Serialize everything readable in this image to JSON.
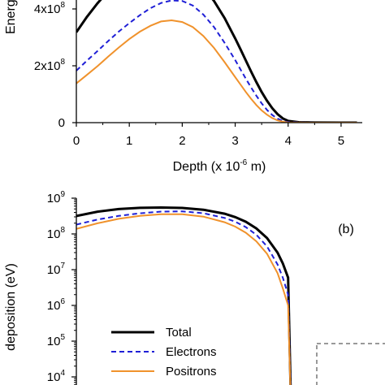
{
  "chart_data": [
    {
      "type": "line",
      "xlabel_main": "Depth (x 10",
      "xlabel_exp": "-6",
      "xlabel_tail": " m)",
      "ylabel": "Energy d",
      "x_ticks": [
        "0",
        "1",
        "2",
        "3",
        "4",
        "5"
      ],
      "y_ticks": [
        {
          "value": 0,
          "mant": "0",
          "exp": ""
        },
        {
          "value": 200000000,
          "mant": "2x10",
          "exp": "8"
        },
        {
          "value": 400000000,
          "mant": "4x10",
          "exp": "8"
        }
      ],
      "xlim": [
        0,
        5.4
      ],
      "ylim": [
        0,
        480000000
      ],
      "series": [
        {
          "name": "Total",
          "color": "#000000",
          "dash": "solid",
          "x": [
            0,
            0.2,
            0.4,
            0.6,
            0.8,
            1.0,
            1.2,
            1.4,
            1.6,
            1.8,
            2.0,
            2.2,
            2.4,
            2.6,
            2.8,
            3.0,
            3.1,
            3.2,
            3.3,
            3.4,
            3.5,
            3.6,
            3.7,
            3.8,
            3.9,
            4.0,
            4.2,
            4.5,
            5.0,
            5.3
          ],
          "y": [
            318000000,
            372000000,
            420000000,
            462000000,
            495000000,
            520000000,
            536000000,
            545000000,
            548000000,
            545000000,
            533000000,
            510000000,
            475000000,
            428000000,
            368000000,
            296000000,
            258000000,
            219000000,
            180000000,
            143000000,
            108000000,
            77000000,
            51000000,
            30000000,
            15000000,
            6000000,
            1500000,
            300000,
            0,
            0
          ]
        },
        {
          "name": "Electrons",
          "color": "#1f1fd6",
          "dash": "dashed",
          "x": [
            0,
            0.2,
            0.4,
            0.6,
            0.8,
            1.0,
            1.2,
            1.4,
            1.6,
            1.8,
            2.0,
            2.2,
            2.4,
            2.6,
            2.8,
            3.0,
            3.1,
            3.2,
            3.3,
            3.4,
            3.5,
            3.6,
            3.7,
            3.8,
            3.9,
            4.0,
            4.2,
            4.5,
            5.0,
            5.3
          ],
          "y": [
            183000000,
            218000000,
            252000000,
            287000000,
            320000000,
            350000000,
            378000000,
            403000000,
            421000000,
            430000000,
            428000000,
            412000000,
            380000000,
            336000000,
            281000000,
            220000000,
            187000000,
            155000000,
            124000000,
            95000000,
            68000000,
            45000000,
            27000000,
            14000000,
            6000000,
            2000000,
            500000,
            0,
            0,
            0
          ]
        },
        {
          "name": "Positrons",
          "color": "#f0922c",
          "dash": "solid",
          "x": [
            0,
            0.2,
            0.4,
            0.6,
            0.8,
            1.0,
            1.2,
            1.4,
            1.6,
            1.8,
            2.0,
            2.2,
            2.4,
            2.6,
            2.8,
            3.0,
            3.1,
            3.2,
            3.3,
            3.4,
            3.5,
            3.6,
            3.7,
            3.8,
            3.9,
            4.0,
            4.2,
            4.5,
            5.0,
            5.3
          ],
          "y": [
            138000000,
            168000000,
            199000000,
            232000000,
            264000000,
            294000000,
            320000000,
            341000000,
            356000000,
            360000000,
            354000000,
            336000000,
            305000000,
            263000000,
            213000000,
            160000000,
            134000000,
            108000000,
            84000000,
            62000000,
            43000000,
            28000000,
            16000000,
            8000000,
            3000000,
            1000000,
            200000,
            0,
            0,
            0
          ]
        }
      ]
    },
    {
      "type": "line",
      "log_y": true,
      "panel_label": "(b)",
      "ylabel": "deposition (eV)",
      "y_ticks": [
        {
          "exp10": 9,
          "mant": "10",
          "exp": "9"
        },
        {
          "exp10": 8,
          "mant": "10",
          "exp": "8"
        },
        {
          "exp10": 7,
          "mant": "10",
          "exp": "7"
        },
        {
          "exp10": 6,
          "mant": "10",
          "exp": "6"
        },
        {
          "exp10": 5,
          "mant": "10",
          "exp": "5"
        },
        {
          "exp10": 4,
          "mant": "10",
          "exp": "4"
        }
      ],
      "xlim": [
        0,
        5.4
      ],
      "legend": [
        "Total",
        "Electrons",
        "Positrons"
      ],
      "series": [
        {
          "name": "Total",
          "color": "#000000",
          "dash": "solid",
          "x": [
            0,
            0.4,
            0.8,
            1.2,
            1.6,
            2.0,
            2.4,
            2.8,
            3.0,
            3.2,
            3.4,
            3.6,
            3.8,
            3.9,
            4.0,
            4.05
          ],
          "y": [
            318000000,
            420000000,
            495000000,
            536000000,
            548000000,
            533000000,
            475000000,
            368000000,
            296000000,
            219000000,
            143000000,
            77000000,
            30000000,
            15000000,
            6000000,
            3000
          ]
        },
        {
          "name": "Electrons",
          "color": "#1f1fd6",
          "dash": "dashed",
          "x": [
            0,
            0.4,
            0.8,
            1.2,
            1.6,
            2.0,
            2.4,
            2.8,
            3.0,
            3.2,
            3.4,
            3.6,
            3.8,
            3.9,
            4.0,
            4.05
          ],
          "y": [
            183000000,
            252000000,
            320000000,
            378000000,
            421000000,
            428000000,
            380000000,
            281000000,
            220000000,
            155000000,
            95000000,
            45000000,
            14000000,
            6000000,
            2000000,
            2500
          ]
        },
        {
          "name": "Positrons",
          "color": "#f0922c",
          "dash": "solid",
          "x": [
            0,
            0.4,
            0.8,
            1.2,
            1.6,
            2.0,
            2.4,
            2.8,
            3.0,
            3.2,
            3.4,
            3.6,
            3.8,
            3.9,
            4.0,
            4.05
          ],
          "y": [
            138000000,
            199000000,
            264000000,
            320000000,
            356000000,
            354000000,
            305000000,
            213000000,
            160000000,
            108000000,
            62000000,
            28000000,
            8000000,
            3000000,
            1000000,
            2000
          ]
        }
      ]
    }
  ]
}
